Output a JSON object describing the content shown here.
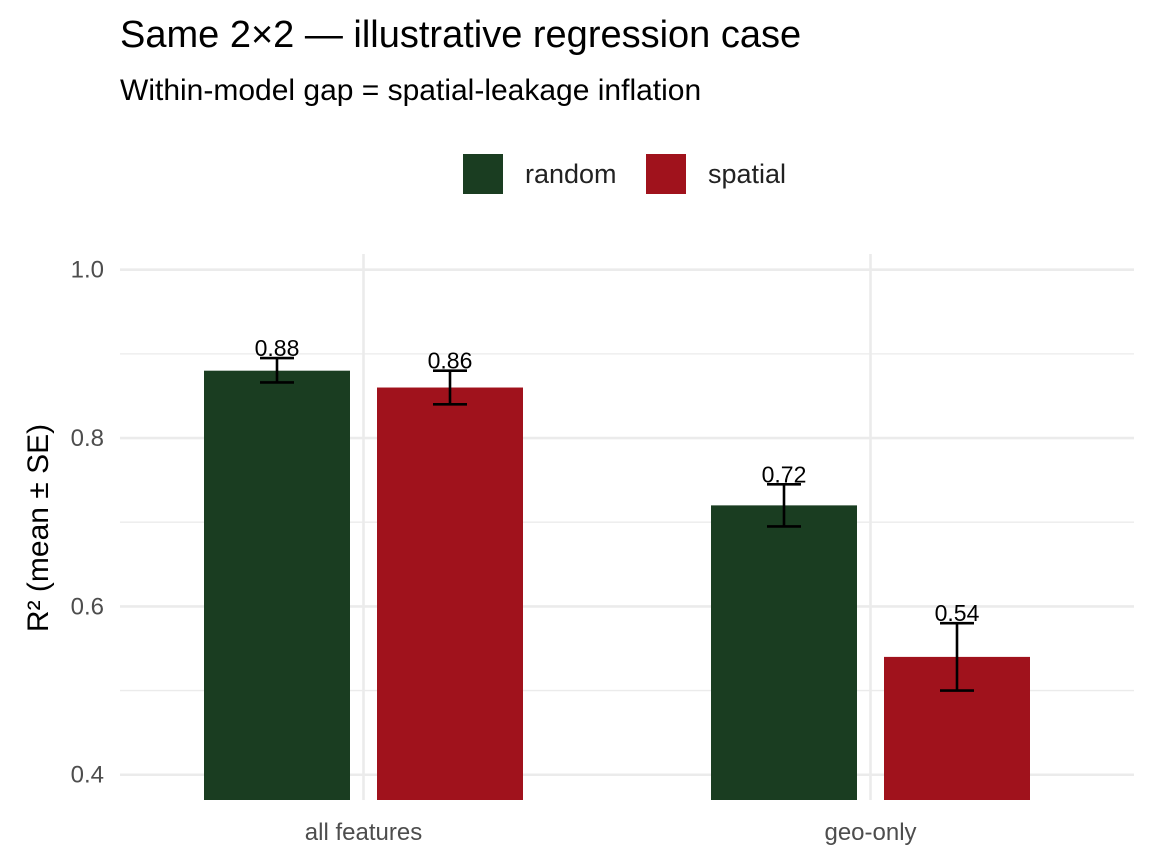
{
  "chart_data": {
    "type": "bar",
    "title": "Same 2×2 — illustrative regression case",
    "subtitle": "Within-model gap = spatial-leakage inflation",
    "xlabel": "",
    "ylabel": "R² (mean ± SE)",
    "categories": [
      "all features",
      "geo-only"
    ],
    "series": [
      {
        "name": "random",
        "color": "#1a3d21",
        "values": [
          0.88,
          0.72
        ],
        "se_low": [
          0.866,
          0.695
        ],
        "se_high": [
          0.895,
          0.745
        ],
        "labels": [
          "0.88",
          "0.72"
        ]
      },
      {
        "name": "spatial",
        "color": "#a0121c",
        "values": [
          0.86,
          0.54
        ],
        "se_low": [
          0.84,
          0.5
        ],
        "se_high": [
          0.88,
          0.58
        ],
        "labels": [
          "0.86",
          "0.54"
        ]
      }
    ],
    "ylim": [
      0.37,
      1.04
    ],
    "yticks": [
      0.4,
      0.6,
      0.8,
      1.0
    ],
    "ytick_labels": [
      "0.4",
      "0.6",
      "0.8",
      "1.0"
    ],
    "grid": true,
    "legend_position": "top"
  }
}
